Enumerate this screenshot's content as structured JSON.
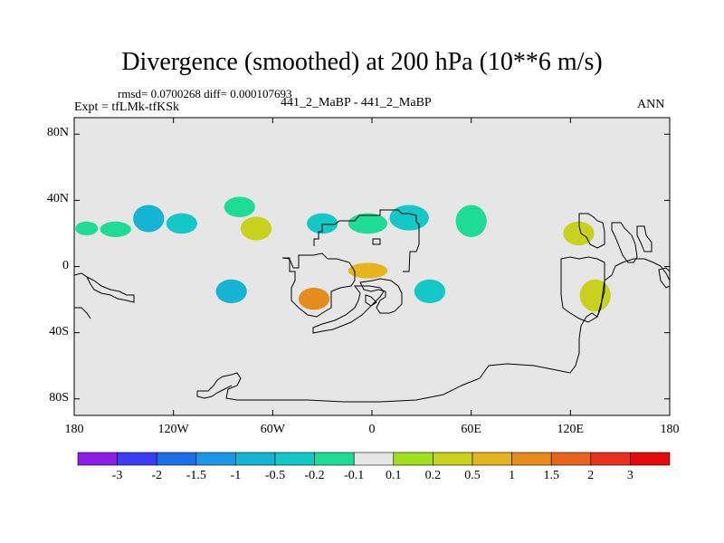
{
  "header": {
    "title": "Divergence (smoothed) at 200 hPa (10**6 m/s)",
    "stats": "rmsd= 0.0700268 diff= 0.000107693",
    "experiment": "Expt = tfLMk-tfKSk",
    "cases": "441_2_MaBP - 441_2_MaBP",
    "season": "ANN"
  },
  "chart_data": {
    "type": "map-contour",
    "title": "Divergence (smoothed) at 200 hPa (10**6 m/s)",
    "variable": "Divergence (smoothed)",
    "level": "200 hPa",
    "units": "10**6 m/s",
    "projection": "cylindrical equidistant",
    "lon_range": [
      -180,
      180
    ],
    "lat_range": [
      -90,
      90
    ],
    "x_ticks": [
      {
        "value": -180,
        "label": "180"
      },
      {
        "value": -120,
        "label": "120W"
      },
      {
        "value": -60,
        "label": "60W"
      },
      {
        "value": 0,
        "label": "0"
      },
      {
        "value": 60,
        "label": "60E"
      },
      {
        "value": 120,
        "label": "120E"
      },
      {
        "value": 180,
        "label": "180"
      }
    ],
    "y_ticks": [
      {
        "value": 80,
        "label": "80N"
      },
      {
        "value": 40,
        "label": "40N"
      },
      {
        "value": 0,
        "label": "0"
      },
      {
        "value": -40,
        "label": "40S"
      },
      {
        "value": -80,
        "label": "80S"
      }
    ],
    "colorbar": {
      "labels": [
        "-3",
        "-2",
        "-1.5",
        "-1",
        "-0.5",
        "-0.2",
        "-0.1",
        "0.1",
        "0.2",
        "0.5",
        "1",
        "1.5",
        "2",
        "3"
      ],
      "colors": [
        "#8c1ee6",
        "#3c3cf0",
        "#1e6ee6",
        "#1e96e6",
        "#14b4d2",
        "#14c8c8",
        "#1edc96",
        "#e6e6e6",
        "#a0e01e",
        "#c8d21e",
        "#e6b41e",
        "#e68c1e",
        "#e6641e",
        "#e6321e",
        "#e60a0a"
      ]
    },
    "shaded_regions": [
      {
        "lon": [
          -175,
          -170
        ],
        "lat": [
          25,
          21
        ],
        "level": "-0.1"
      },
      {
        "lon": [
          -160,
          -150
        ],
        "lat": [
          25,
          20
        ],
        "level": "-0.1"
      },
      {
        "lon": [
          -140,
          -130
        ],
        "lat": [
          35,
          23
        ],
        "level": "-0.5"
      },
      {
        "lon": [
          -120,
          -110
        ],
        "lat": [
          30,
          22
        ],
        "level": "-0.2"
      },
      {
        "lon": [
          -85,
          -75
        ],
        "lat": [
          40,
          32
        ],
        "level": "-0.1"
      },
      {
        "lon": [
          -75,
          -65
        ],
        "lat": [
          28,
          18
        ],
        "level": "0.2"
      },
      {
        "lon": [
          -35,
          -25
        ],
        "lat": [
          30,
          22
        ],
        "level": "-0.2"
      },
      {
        "lon": [
          -10,
          5
        ],
        "lat": [
          30,
          22
        ],
        "level": "-0.1"
      },
      {
        "lon": [
          15,
          30
        ],
        "lat": [
          35,
          24
        ],
        "level": "-0.2"
      },
      {
        "lon": [
          55,
          65
        ],
        "lat": [
          35,
          20
        ],
        "level": "-0.1"
      },
      {
        "lon": [
          120,
          130
        ],
        "lat": [
          25,
          15
        ],
        "level": "0.2"
      },
      {
        "lon": [
          -90,
          -80
        ],
        "lat": [
          -10,
          -20
        ],
        "level": "-0.5"
      },
      {
        "lon": [
          -40,
          -30
        ],
        "lat": [
          -15,
          -24
        ],
        "level": "1"
      },
      {
        "lon": [
          -10,
          5
        ],
        "lat": [
          0,
          -5
        ],
        "level": "0.5"
      },
      {
        "lon": [
          30,
          40
        ],
        "lat": [
          -10,
          -20
        ],
        "level": "-0.2"
      },
      {
        "lon": [
          130,
          140
        ],
        "lat": [
          -10,
          -25
        ],
        "level": "0.2"
      }
    ]
  }
}
